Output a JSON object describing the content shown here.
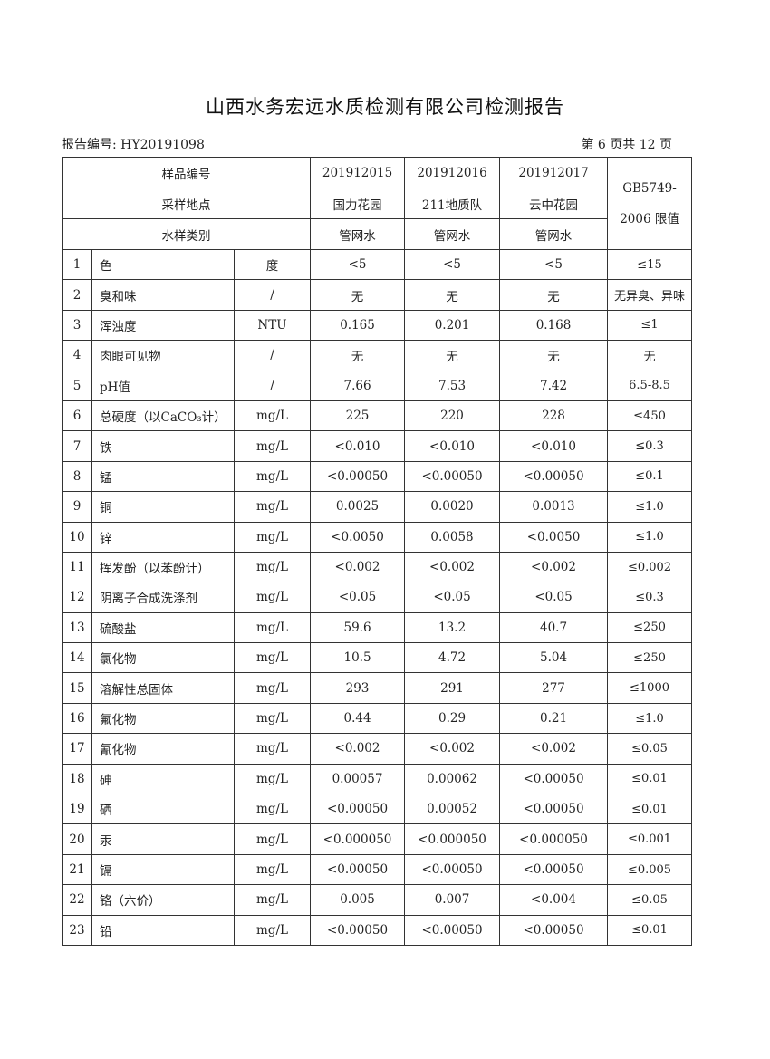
{
  "title": "山西水务宏远水质检测有限公司检测报告",
  "report_no_label": "报告编号: HY20191098",
  "page_label": "第 6 页共 12 页",
  "header": {
    "sample_no_label": "样品编号",
    "location_label": "采样地点",
    "type_label": "水样类别",
    "limit_label_1": "GB5749-",
    "limit_label_2": "2006 限值",
    "samples": [
      {
        "id": "201912015",
        "location": "国力花园",
        "type": "管网水"
      },
      {
        "id": "201912016",
        "location": "211地质队",
        "type": "管网水"
      },
      {
        "id": "201912017",
        "location": "云中花园",
        "type": "管网水"
      }
    ]
  },
  "rows": [
    {
      "no": "1",
      "name": "色",
      "unit": "度",
      "v": [
        "<5",
        "<5",
        "<5"
      ],
      "limit": "≤15"
    },
    {
      "no": "2",
      "name": "臭和味",
      "unit": "/",
      "v": [
        "无",
        "无",
        "无"
      ],
      "limit": "无异臭、异味"
    },
    {
      "no": "3",
      "name": "浑浊度",
      "unit": "NTU",
      "v": [
        "0.165",
        "0.201",
        "0.168"
      ],
      "limit": "≤1"
    },
    {
      "no": "4",
      "name": "肉眼可见物",
      "unit": "/",
      "v": [
        "无",
        "无",
        "无"
      ],
      "limit": "无"
    },
    {
      "no": "5",
      "name": "pH值",
      "unit": "/",
      "v": [
        "7.66",
        "7.53",
        "7.42"
      ],
      "limit": "6.5-8.5"
    },
    {
      "no": "6",
      "name": "总硬度（以CaCO₃计）",
      "unit": "mg/L",
      "v": [
        "225",
        "220",
        "228"
      ],
      "limit": "≤450"
    },
    {
      "no": "7",
      "name": "铁",
      "unit": "mg/L",
      "v": [
        "<0.010",
        "<0.010",
        "<0.010"
      ],
      "limit": "≤0.3"
    },
    {
      "no": "8",
      "name": "锰",
      "unit": "mg/L",
      "v": [
        "<0.00050",
        "<0.00050",
        "<0.00050"
      ],
      "limit": "≤0.1"
    },
    {
      "no": "9",
      "name": "铜",
      "unit": "mg/L",
      "v": [
        "0.0025",
        "0.0020",
        "0.0013"
      ],
      "limit": "≤1.0"
    },
    {
      "no": "10",
      "name": "锌",
      "unit": "mg/L",
      "v": [
        "<0.0050",
        "0.0058",
        "<0.0050"
      ],
      "limit": "≤1.0"
    },
    {
      "no": "11",
      "name": "挥发酚（以苯酚计）",
      "unit": "mg/L",
      "v": [
        "<0.002",
        "<0.002",
        "<0.002"
      ],
      "limit": "≤0.002"
    },
    {
      "no": "12",
      "name": "阴离子合成洗涤剂",
      "unit": "mg/L",
      "v": [
        "<0.05",
        "<0.05",
        "<0.05"
      ],
      "limit": "≤0.3"
    },
    {
      "no": "13",
      "name": "硫酸盐",
      "unit": "mg/L",
      "v": [
        "59.6",
        "13.2",
        "40.7"
      ],
      "limit": "≤250"
    },
    {
      "no": "14",
      "name": "氯化物",
      "unit": "mg/L",
      "v": [
        "10.5",
        "4.72",
        "5.04"
      ],
      "limit": "≤250"
    },
    {
      "no": "15",
      "name": "溶解性总固体",
      "unit": "mg/L",
      "v": [
        "293",
        "291",
        "277"
      ],
      "limit": "≤1000"
    },
    {
      "no": "16",
      "name": "氟化物",
      "unit": "mg/L",
      "v": [
        "0.44",
        "0.29",
        "0.21"
      ],
      "limit": "≤1.0"
    },
    {
      "no": "17",
      "name": "氰化物",
      "unit": "mg/L",
      "v": [
        "<0.002",
        "<0.002",
        "<0.002"
      ],
      "limit": "≤0.05"
    },
    {
      "no": "18",
      "name": "砷",
      "unit": "mg/L",
      "v": [
        "0.00057",
        "0.00062",
        "<0.00050"
      ],
      "limit": "≤0.01"
    },
    {
      "no": "19",
      "name": "硒",
      "unit": "mg/L",
      "v": [
        "<0.00050",
        "0.00052",
        "<0.00050"
      ],
      "limit": "≤0.01"
    },
    {
      "no": "20",
      "name": "汞",
      "unit": "mg/L",
      "v": [
        "<0.000050",
        "<0.000050",
        "<0.000050"
      ],
      "limit": "≤0.001"
    },
    {
      "no": "21",
      "name": "镉",
      "unit": "mg/L",
      "v": [
        "<0.00050",
        "<0.00050",
        "<0.00050"
      ],
      "limit": "≤0.005"
    },
    {
      "no": "22",
      "name": "铬（六价）",
      "unit": "mg/L",
      "v": [
        "0.005",
        "0.007",
        "<0.004"
      ],
      "limit": "≤0.05"
    },
    {
      "no": "23",
      "name": "铅",
      "unit": "mg/L",
      "v": [
        "<0.00050",
        "<0.00050",
        "<0.00050"
      ],
      "limit": "≤0.01"
    }
  ]
}
